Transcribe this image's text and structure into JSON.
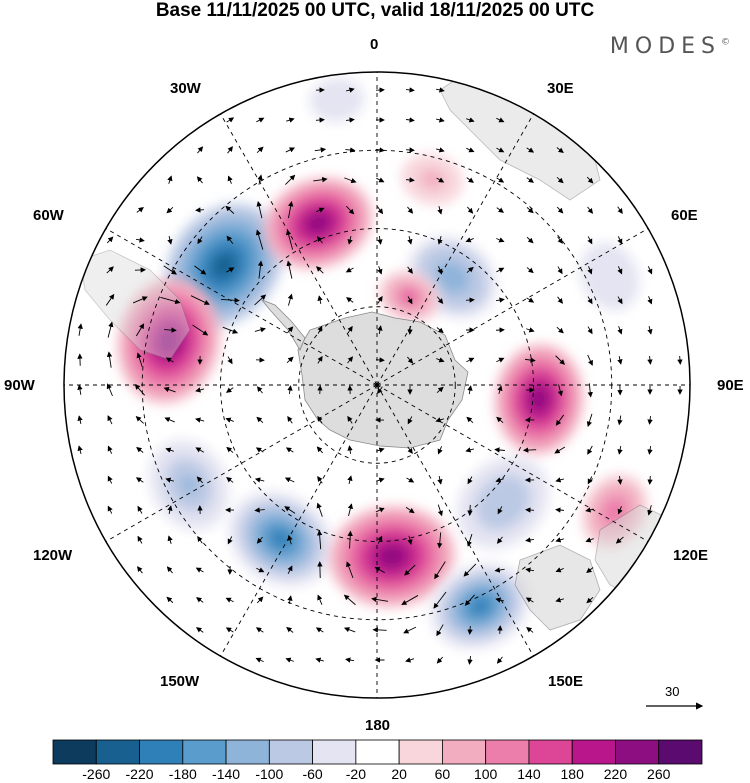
{
  "header": {
    "title": "Base 11/11/2025 00 UTC, valid 18/11/2025 00 UTC",
    "brand": "MODES",
    "brand_mark": "©"
  },
  "map": {
    "projection": "polar-stereographic-south",
    "longitude_labels": {
      "top": "0",
      "top_right": "30E",
      "right_upper": "60E",
      "right": "90E",
      "right_lower": "120E",
      "bottom_right": "150E",
      "bottom": "180",
      "bottom_left": "150W",
      "left_lower": "120W",
      "left": "90W",
      "left_upper": "60W",
      "top_left": "30W"
    },
    "reference_vector": "30"
  },
  "colorbar": {
    "colors": [
      "#0d3b5e",
      "#17608f",
      "#2f7fb8",
      "#5a9ccc",
      "#8fb4da",
      "#bcc9e4",
      "#e4e4f2",
      "#ffffff",
      "#f8d6dc",
      "#f2aec0",
      "#ec7eab",
      "#dd4597",
      "#b8168a",
      "#8c0e80",
      "#5b0a70"
    ],
    "labels": [
      "-260",
      "-220",
      "-180",
      "-140",
      "-100",
      "-60",
      "-20",
      "20",
      "60",
      "100",
      "140",
      "180",
      "220",
      "260"
    ]
  },
  "anomalies": [
    {
      "lon": -52,
      "r": 0.62,
      "v": -260,
      "size": 0.17
    },
    {
      "lon": -20,
      "r": 0.55,
      "v": 240,
      "size": 0.14
    },
    {
      "lon": -78,
      "r": 0.68,
      "v": 250,
      "size": 0.16
    },
    {
      "lon": -118,
      "r": 0.68,
      "v": -120,
      "size": 0.12
    },
    {
      "lon": -148,
      "r": 0.58,
      "v": -220,
      "size": 0.14
    },
    {
      "lon": 175,
      "r": 0.55,
      "v": 250,
      "size": 0.16
    },
    {
      "lon": 155,
      "r": 0.78,
      "v": -210,
      "size": 0.13
    },
    {
      "lon": 133,
      "r": 0.55,
      "v": -100,
      "size": 0.13
    },
    {
      "lon": 95,
      "r": 0.52,
      "v": 230,
      "size": 0.14
    },
    {
      "lon": 35,
      "r": 0.42,
      "v": -130,
      "size": 0.12
    },
    {
      "lon": 20,
      "r": 0.3,
      "v": 150,
      "size": 0.08
    },
    {
      "lon": 118,
      "r": 0.86,
      "v": 120,
      "size": 0.1
    },
    {
      "lon": 15,
      "r": 0.68,
      "v": 70,
      "size": 0.08
    },
    {
      "lon": -8,
      "r": 0.92,
      "v": -60,
      "size": 0.07
    },
    {
      "lon": 65,
      "r": 0.82,
      "v": -40,
      "size": 0.09
    }
  ]
}
